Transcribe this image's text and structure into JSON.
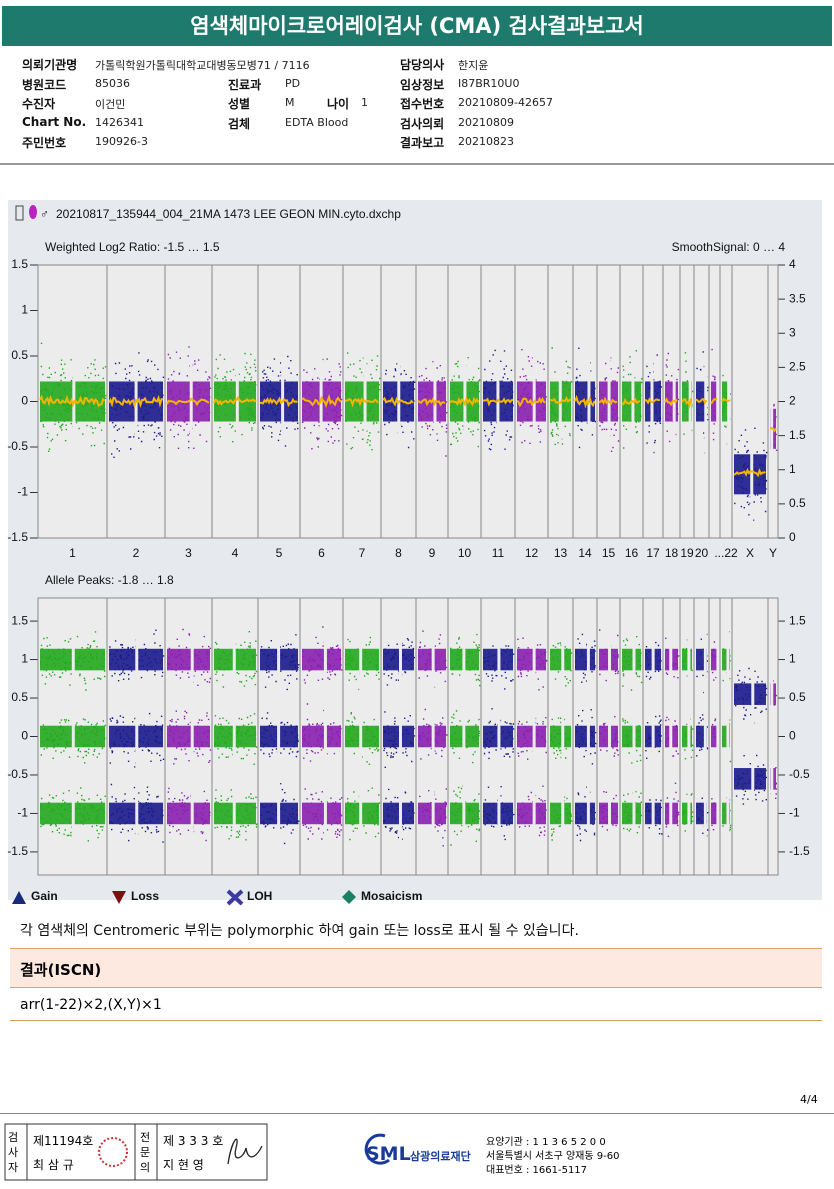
{
  "header": {
    "title": "염색체마이크로어레이검사 (CMA) 검사결과보고서"
  },
  "info": {
    "left": [
      {
        "label": "의뢰기관명",
        "value": "가톨릭학원가톨릭대학교대병동모병71 / 7116"
      },
      {
        "label": "병원코드",
        "value": "85036"
      },
      {
        "label": "수진자",
        "value": "이건민"
      },
      {
        "label": "Chart No.",
        "value": "1426341"
      },
      {
        "label": "주민번호",
        "value": "190926-3"
      }
    ],
    "middle": [
      {
        "label": "진료과",
        "value": "PD"
      },
      {
        "label": "성별",
        "value": "M"
      },
      {
        "label": "검체",
        "value": "EDTA Blood"
      }
    ],
    "age": {
      "label": "나이",
      "value": "1"
    },
    "right": [
      {
        "label": "담당의사",
        "value": "한지윤"
      },
      {
        "label": "임상정보",
        "value": "I87BR10U0"
      },
      {
        "label": "접수번호",
        "value": "20210809-42657"
      },
      {
        "label": "검사의뢰",
        "value": "20210809"
      },
      {
        "label": "결과보고",
        "value": "20210823"
      }
    ]
  },
  "figure": {
    "file": "20210817_135944_004_21MA 1473 LEE GEON MIN.cyto.dxchp",
    "panels": [
      {
        "label": "Weighted Log2 Ratio: -1.5 … 1.5",
        "right_label": "SmoothSignal: 0 … 4",
        "ylim": [
          -1.5,
          1.5
        ],
        "yticks": [
          1.5,
          1,
          0.5,
          0,
          -0.5,
          -1,
          -1.5
        ],
        "y2lim": [
          0,
          4
        ],
        "y2ticks": [
          4,
          3.5,
          3,
          2.5,
          2,
          1.5,
          1,
          0.5,
          0
        ]
      },
      {
        "label": "Allele Peaks: -1.8 … 1.8",
        "ylim": [
          -1.8,
          1.8
        ],
        "yticks": [
          1.5,
          1,
          0.5,
          0,
          -0.5,
          -1,
          -1.5
        ],
        "y2lim": [
          -1.8,
          1.8
        ],
        "y2ticks": [
          1.5,
          1,
          0.5,
          0,
          -0.5,
          -1,
          -1.5
        ]
      }
    ],
    "chromosomes": [
      "1",
      "2",
      "3",
      "4",
      "5",
      "6",
      "7",
      "8",
      "9",
      "10",
      "11",
      "12",
      "13",
      "14",
      "15",
      "16",
      "17",
      "18",
      "19",
      "20",
      null,
      "...22",
      "X",
      "Y"
    ],
    "legend": [
      "Gain",
      "Loss",
      "LOH",
      "Mosaicism"
    ]
  },
  "note": "각 염색체의 Centromeric 부위는 polymorphic 하여 gain 또는 loss로 표시 될 수 있습니다.",
  "result": {
    "heading": "결과(ISCN)",
    "value": "arr(1-22)×2,(X,Y)×1"
  },
  "page": "4/4",
  "footer": {
    "tester": {
      "role": "검사자",
      "license": "제11194호",
      "name": "최 삼 규"
    },
    "specialist": {
      "role": "전문의",
      "license": "제 3 3 3 호",
      "name": "지 현 영"
    },
    "logo": "SML",
    "org": "삼광의료재단",
    "address": [
      "요양기관 : 1 1 3 6 5 2 0 0",
      "서울특별시 서초구 양재동 9-60",
      "대표번호 : 1661-5117"
    ]
  }
}
